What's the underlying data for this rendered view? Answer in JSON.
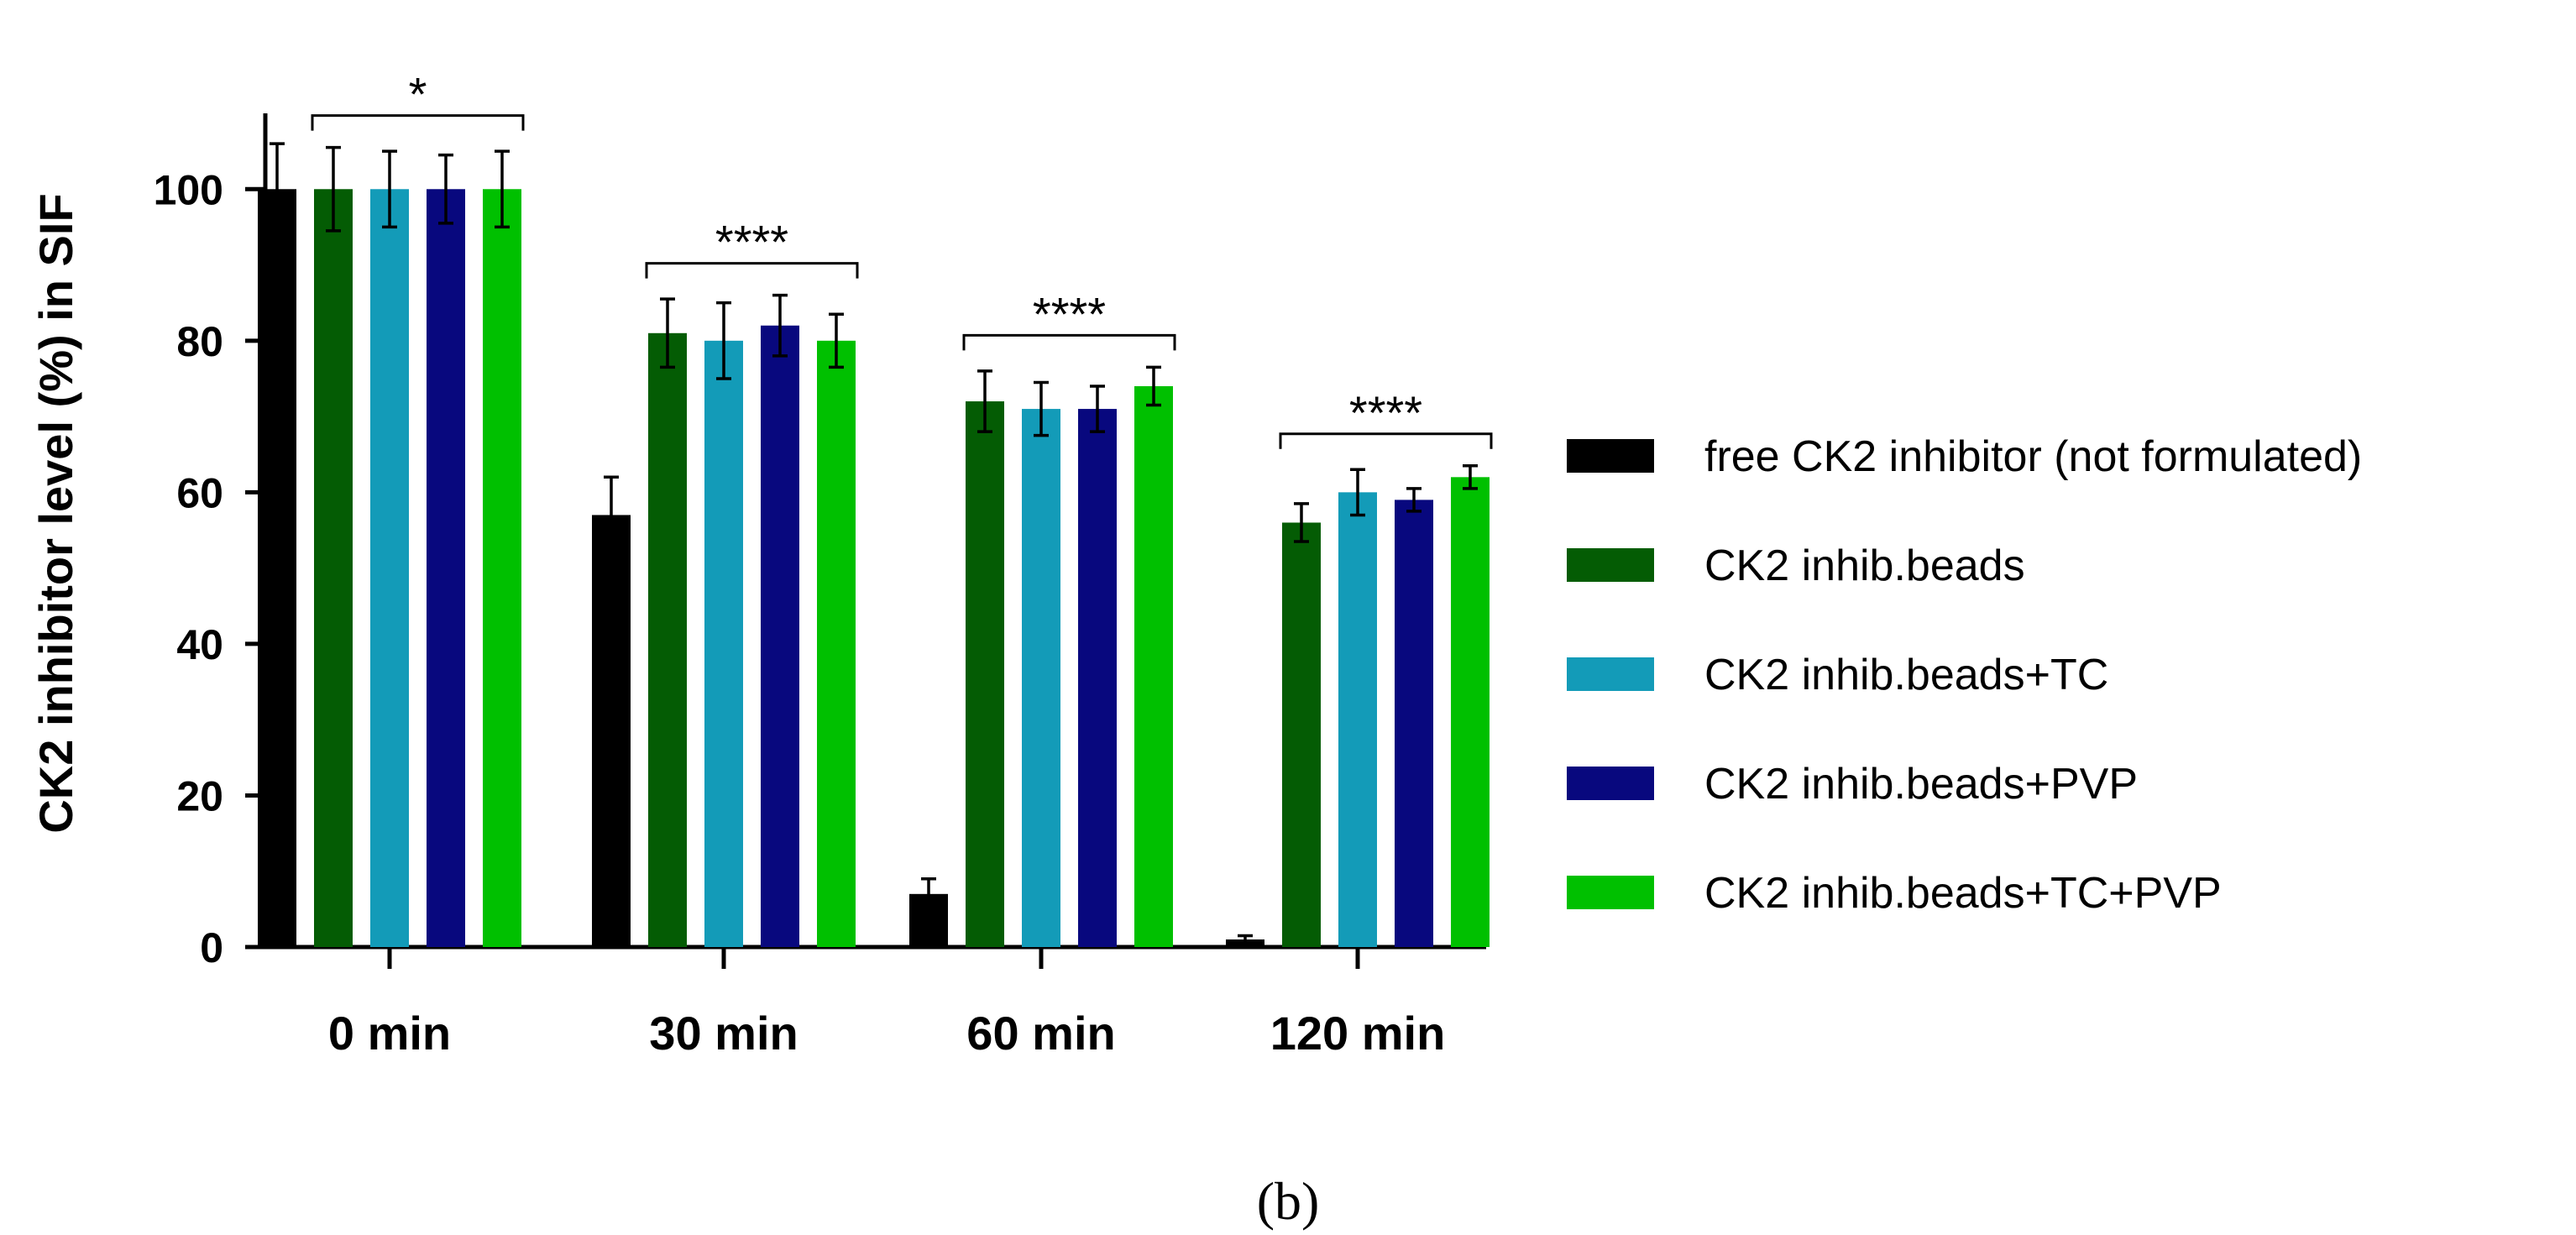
{
  "chart_data": {
    "type": "bar",
    "title": "",
    "xlabel": "",
    "ylabel": "CK2 inhibitor level (%) in  SIF",
    "ylim": [
      0,
      110
    ],
    "yticks": [
      "0",
      "20",
      "40",
      "60",
      "80",
      "100"
    ],
    "categories": [
      "0 min",
      "30 min",
      "60 min",
      "120 min"
    ],
    "series": [
      {
        "name": "free CK2 inhibitor (not formulated)",
        "color": "#000000",
        "values": [
          100,
          57,
          7,
          1
        ],
        "errors": [
          6,
          5,
          2,
          0.5
        ]
      },
      {
        "name": "CK2 inhib.beads",
        "color": "#045c04",
        "values": [
          100,
          81,
          72,
          56
        ],
        "errors": [
          5.5,
          4.5,
          4,
          2.5
        ]
      },
      {
        "name": "CK2 inhib.beads+TC",
        "color": "#139bb8",
        "values": [
          100,
          80,
          71,
          60
        ],
        "errors": [
          5,
          5,
          3.5,
          3
        ]
      },
      {
        "name": "CK2 inhib.beads+PVP",
        "color": "#08087e",
        "values": [
          100,
          82,
          71,
          59
        ],
        "errors": [
          4.5,
          4,
          3,
          1.5
        ]
      },
      {
        "name": "CK2 inhib.beads+TC+PVP",
        "color": "#00c000",
        "values": [
          100,
          80,
          74,
          62
        ],
        "errors": [
          5,
          3.5,
          2.5,
          1.5
        ]
      }
    ],
    "significance": [
      {
        "category": "0 min",
        "label": "*"
      },
      {
        "category": "30 min",
        "label": "****"
      },
      {
        "category": "60 min",
        "label": "****"
      },
      {
        "category": "120 min",
        "label": "****"
      }
    ],
    "legend_position": "right",
    "panel_label": "(b)"
  }
}
